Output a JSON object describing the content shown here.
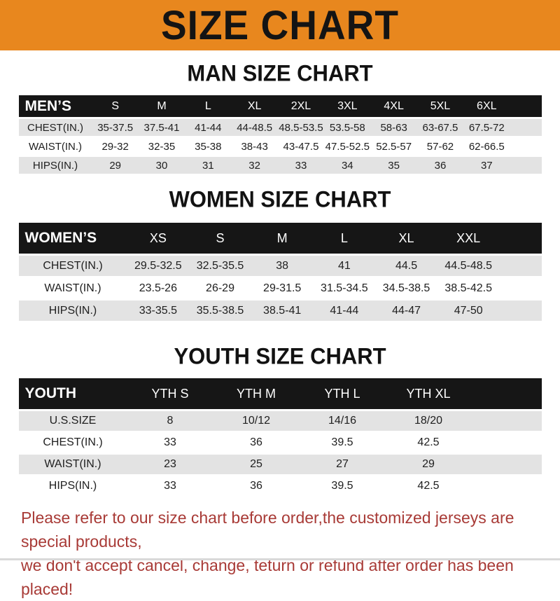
{
  "banner": {
    "title": "SIZE CHART"
  },
  "colors": {
    "banner_bg": "#E8871E",
    "banner_text": "#141414",
    "table_header_bg": "#161616",
    "table_header_text": "#FFFFFF",
    "row_alt_bg": "#E3E3E3",
    "notice_text": "#A83A36"
  },
  "sections": [
    {
      "id": "men",
      "title": "MAN SIZE CHART",
      "header_label": "MEN’S",
      "columns": [
        "S",
        "M",
        "L",
        "XL",
        "2XL",
        "3XL",
        "4XL",
        "5XL",
        "6XL"
      ],
      "rows": [
        {
          "label": "CHEST(IN.)",
          "values": [
            "35-37.5",
            "37.5-41",
            "41-44",
            "44-48.5",
            "48.5-53.5",
            "53.5-58",
            "58-63",
            "63-67.5",
            "67.5-72"
          ]
        },
        {
          "label": "WAIST(IN.)",
          "values": [
            "29-32",
            "32-35",
            "35-38",
            "38-43",
            "43-47.5",
            "47.5-52.5",
            "52.5-57",
            "57-62",
            "62-66.5"
          ]
        },
        {
          "label": "HIPS(IN.)",
          "values": [
            "29",
            "30",
            "31",
            "32",
            "33",
            "34",
            "35",
            "36",
            "37"
          ]
        }
      ]
    },
    {
      "id": "women",
      "title": "WOMEN SIZE CHART",
      "header_label": "WOMEN’S",
      "columns": [
        "XS",
        "S",
        "M",
        "L",
        "XL",
        "XXL"
      ],
      "rows": [
        {
          "label": "CHEST(IN.)",
          "values": [
            "29.5-32.5",
            "32.5-35.5",
            "38",
            "41",
            "44.5",
            "44.5-48.5"
          ]
        },
        {
          "label": "WAIST(IN.)",
          "values": [
            "23.5-26",
            "26-29",
            "29-31.5",
            "31.5-34.5",
            "34.5-38.5",
            "38.5-42.5"
          ]
        },
        {
          "label": "HIPS(IN.)",
          "values": [
            "33-35.5",
            "35.5-38.5",
            "38.5-41",
            "41-44",
            "44-47",
            "47-50"
          ]
        }
      ]
    },
    {
      "id": "youth",
      "title": "YOUTH SIZE CHART",
      "header_label": "YOUTH",
      "columns": [
        "YTH S",
        "YTH M",
        "YTH L",
        "YTH XL"
      ],
      "rows": [
        {
          "label": "U.S.SIZE",
          "values": [
            "8",
            "10/12",
            "14/16",
            "18/20"
          ]
        },
        {
          "label": "CHEST(IN.)",
          "values": [
            "33",
            "36",
            "39.5",
            "42.5"
          ]
        },
        {
          "label": "WAIST(IN.)",
          "values": [
            "23",
            "25",
            "27",
            "29"
          ]
        },
        {
          "label": "HIPS(IN.)",
          "values": [
            "33",
            "36",
            "39.5",
            "42.5"
          ]
        }
      ]
    }
  ],
  "footer": {
    "line1": "Please refer to our size chart before order,the customized jerseys are special products,",
    "line2": "we don't accept cancel, change, teturn or refund after order has been placed!"
  }
}
